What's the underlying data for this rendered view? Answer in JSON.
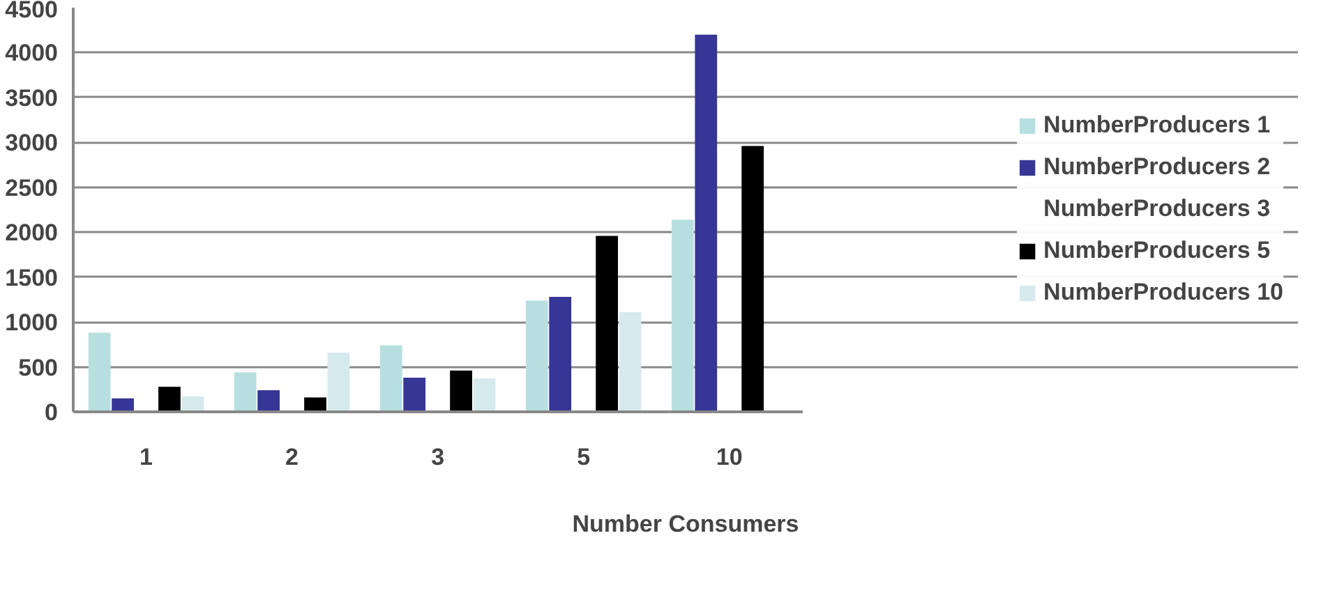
{
  "chart_data": {
    "type": "bar",
    "xlabel": "Number Consumers",
    "categories": [
      "1",
      "2",
      "3",
      "5",
      "10"
    ],
    "series": [
      {
        "name": "NumberProducers 1",
        "color": "#b8dfe0",
        "values": [
          880,
          440,
          740,
          1240,
          2140
        ]
      },
      {
        "name": "NumberProducers 2",
        "color": "#363696",
        "values": [
          150,
          240,
          380,
          1280,
          4200
        ]
      },
      {
        "name": "NumberProducers 3",
        "values": [
          null,
          null,
          null,
          null,
          null
        ]
      },
      {
        "name": "NumberProducers 5",
        "color": "#000000",
        "values": [
          280,
          160,
          460,
          1960,
          2960
        ]
      },
      {
        "name": "NumberProducers 10",
        "color": "#d6eaed",
        "values": [
          170,
          660,
          370,
          1110,
          null
        ]
      }
    ],
    "ylim": [
      0,
      4500
    ],
    "yticks": [
      0,
      500,
      1000,
      1500,
      2000,
      2500,
      3000,
      3500,
      4000,
      4500
    ],
    "grid": "y",
    "legend": "right"
  }
}
